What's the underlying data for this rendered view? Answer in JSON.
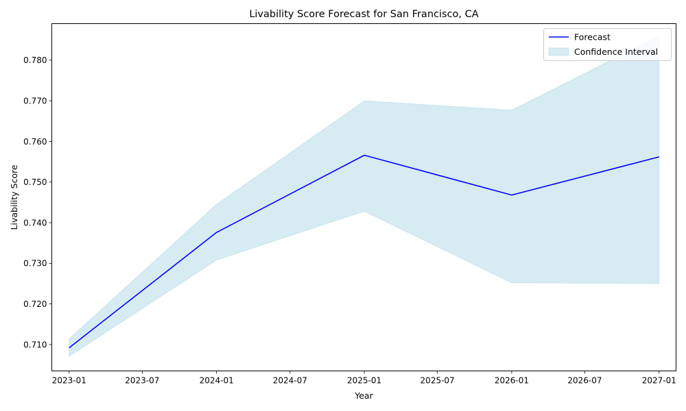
{
  "chart_data": {
    "type": "line",
    "title": "Livability Score Forecast for San Francisco, CA",
    "xlabel": "Year",
    "ylabel": "Livability Score",
    "x": [
      "2023-01-01",
      "2024-01-01",
      "2025-01-01",
      "2026-01-01",
      "2027-01-01"
    ],
    "series": [
      {
        "name": "Forecast",
        "color": "#0000ff",
        "values": [
          0.7092,
          0.7376,
          0.7566,
          0.7468,
          0.7562
        ]
      }
    ],
    "band": {
      "name": "Confidence Interval",
      "color": "#add8e6",
      "lower": [
        0.7071,
        0.7308,
        0.7428,
        0.7252,
        0.725
      ],
      "upper": [
        0.7114,
        0.7445,
        0.77,
        0.7677,
        0.786
      ]
    },
    "x_ticks": [
      "2023-01",
      "2023-07",
      "2024-01",
      "2024-07",
      "2025-01",
      "2025-07",
      "2026-01",
      "2026-07",
      "2027-01"
    ],
    "x_tick_dates": [
      "2023-01-01",
      "2023-07-01",
      "2024-01-01",
      "2024-07-01",
      "2025-01-01",
      "2025-07-01",
      "2026-01-01",
      "2026-07-01",
      "2027-01-01"
    ],
    "y_ticks": [
      "0.710",
      "0.720",
      "0.730",
      "0.740",
      "0.750",
      "0.760",
      "0.770",
      "0.780"
    ],
    "xlim": [
      "2022-11-19",
      "2027-02-12"
    ],
    "ylim": [
      0.7035,
      0.789
    ],
    "grid": false,
    "legend_position": "upper right"
  }
}
